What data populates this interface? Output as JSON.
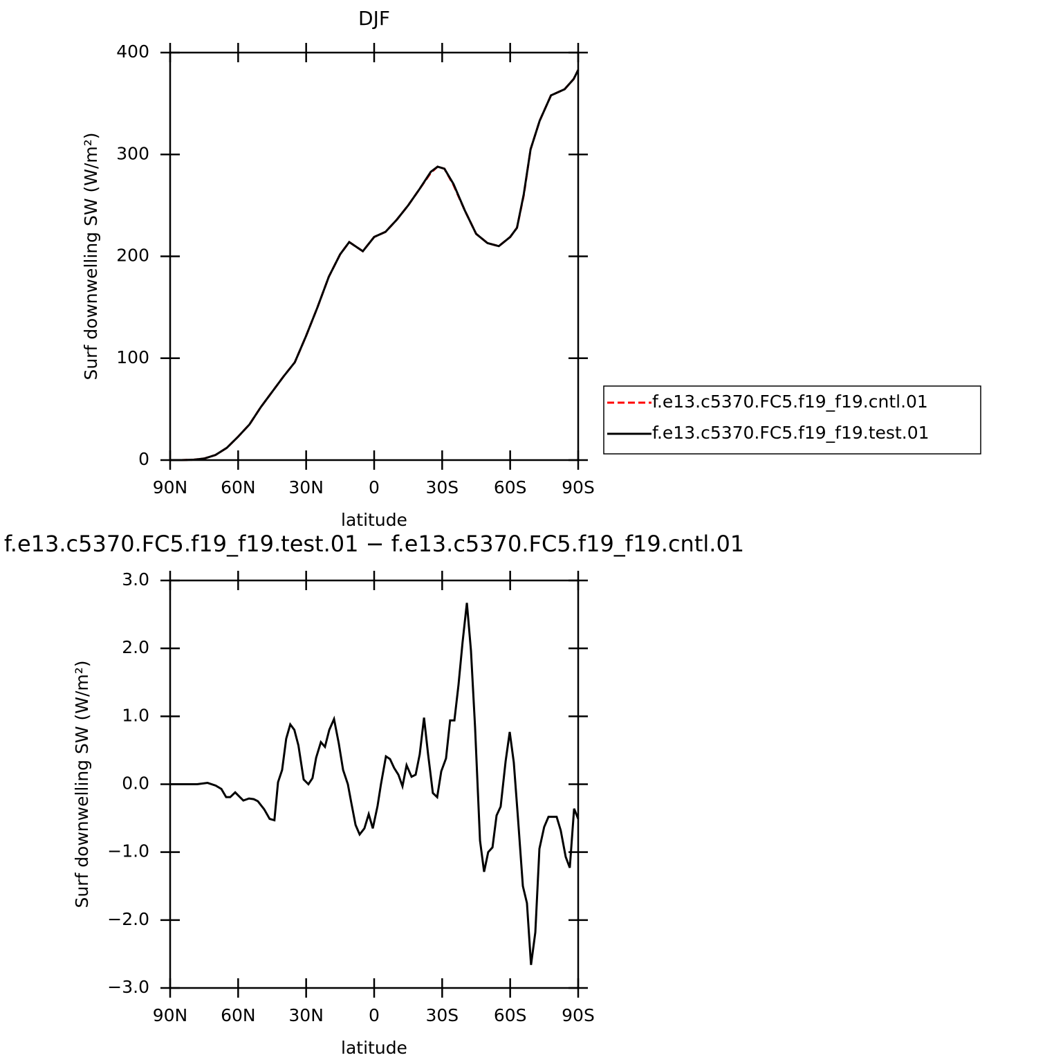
{
  "chart_data": [
    {
      "type": "line",
      "title": "DJF",
      "xlabel": "latitude",
      "ylabel": "Surf downwelling SW (W/m²)",
      "xlim": [
        90,
        -90
      ],
      "xticks": [
        {
          "value": 90,
          "label": "90N"
        },
        {
          "value": 60,
          "label": "60N"
        },
        {
          "value": 30,
          "label": "30N"
        },
        0,
        {
          "value": -30,
          "label": "30S"
        },
        {
          "value": -60,
          "label": "60S"
        },
        {
          "value": -90,
          "label": "90S"
        }
      ],
      "ylim": [
        0,
        400
      ],
      "yticks": [
        0,
        100,
        200,
        300,
        400
      ],
      "legend": "right",
      "x": [
        90,
        85,
        80,
        75,
        70,
        65,
        60,
        55,
        50,
        45,
        40,
        35,
        30,
        25,
        20,
        15,
        11,
        5,
        0,
        -5,
        -10,
        -15,
        -20,
        -25,
        -28,
        -31,
        -35,
        -40,
        -45,
        -50,
        -55,
        -60,
        -63,
        -66,
        -69,
        -73,
        -78,
        -84,
        -88,
        -90
      ],
      "series": [
        {
          "name": "f.e13.c5370.FC5.f19_f19.cntl.01",
          "color": "#ff0000",
          "linestyle": "dashed",
          "values": [
            0,
            0,
            0.3,
            1.5,
            5,
            12,
            23,
            35,
            52,
            67,
            82,
            96,
            122,
            150,
            180,
            202,
            214,
            205,
            219,
            224,
            236,
            250,
            266,
            282,
            288,
            286,
            270,
            245,
            222,
            213,
            210,
            219,
            228,
            260,
            305,
            333,
            358,
            364,
            374,
            383
          ]
        },
        {
          "name": "f.e13.c5370.FC5.f19_f19.test.01",
          "color": "#000000",
          "linestyle": "solid",
          "values": [
            0,
            0,
            0.3,
            1.5,
            5,
            12,
            23,
            35,
            52,
            67,
            82,
            96,
            122,
            150,
            180,
            202,
            214,
            205,
            219,
            224,
            236,
            250,
            266,
            283,
            288,
            286,
            271,
            245,
            222,
            213,
            210,
            219,
            228,
            261,
            305,
            333,
            358,
            364,
            374,
            383
          ]
        }
      ]
    },
    {
      "type": "line",
      "title": "f.e13.c5370.FC5.f19_f19.test.01 − f.e13.c5370.FC5.f19_f19.cntl.01",
      "xlabel": "latitude",
      "ylabel": "Surf downwelling SW (W/m²)",
      "xlim": [
        90,
        -90
      ],
      "xticks": [
        {
          "value": 90,
          "label": "90N"
        },
        {
          "value": 60,
          "label": "60N"
        },
        {
          "value": 30,
          "label": "30N"
        },
        0,
        {
          "value": -30,
          "label": "30S"
        },
        {
          "value": -60,
          "label": "60S"
        },
        {
          "value": -90,
          "label": "90S"
        }
      ],
      "ylim": [
        -3,
        3
      ],
      "yticks": [
        {
          "value": -3,
          "label": "−3.0"
        },
        {
          "value": -2,
          "label": "−2.0"
        },
        {
          "value": -1,
          "label": "−1.0"
        },
        {
          "value": 0,
          "label": "0.0"
        },
        {
          "value": 1,
          "label": "1.0"
        },
        {
          "value": 2,
          "label": "2.0"
        },
        {
          "value": 3,
          "label": "3.0"
        }
      ],
      "color": "#000000",
      "x": [
        90,
        78.1,
        73.5,
        69.9,
        67.4,
        65.3,
        63.5,
        61.3,
        59.2,
        57.7,
        55.2,
        53.1,
        51.3,
        48.5,
        46.1,
        44,
        42.4,
        40.6,
        38.8,
        37,
        35.2,
        33.4,
        31.1,
        29,
        27.2,
        25.6,
        23.5,
        21.7,
        19.8,
        17.7,
        15.6,
        13.7,
        11.6,
        10.1,
        8.2,
        6.4,
        4.3,
        2.4,
        0.6,
        -1.5,
        -3,
        -5.2,
        -7,
        -8.8,
        -10.7,
        -12.5,
        -14.3,
        -16.5,
        -18.3,
        -20.1,
        -22,
        -23.8,
        -25.9,
        -27.8,
        -29.6,
        -31.7,
        -33.5,
        -35.4,
        -37.2,
        -39,
        -40.9,
        -42.7,
        -44.5,
        -46.7,
        -48.5,
        -50.3,
        -52.2,
        -54,
        -55.8,
        -58,
        -59.8,
        -61.6,
        -63.4,
        -65.6,
        -67.4,
        -69.2,
        -71.1,
        -72.9,
        -75,
        -76.9,
        -78.7,
        -80.5,
        -82.3,
        -84.5,
        -86.3,
        -88.2,
        -90
      ],
      "values": [
        0,
        0,
        0.02,
        -0.02,
        -0.07,
        -0.19,
        -0.19,
        -0.12,
        -0.19,
        -0.24,
        -0.21,
        -0.22,
        -0.25,
        -0.37,
        -0.51,
        -0.53,
        0.03,
        0.21,
        0.67,
        0.88,
        0.8,
        0.57,
        0.07,
        0,
        0.09,
        0.39,
        0.62,
        0.55,
        0.8,
        0.96,
        0.6,
        0.21,
        0,
        -0.27,
        -0.6,
        -0.74,
        -0.65,
        -0.44,
        -0.65,
        -0.32,
        0,
        0.41,
        0.37,
        0.24,
        0.14,
        -0.03,
        0.28,
        0.11,
        0.14,
        0.44,
        0.98,
        0.44,
        -0.13,
        -0.19,
        0.19,
        0.38,
        0.94,
        0.94,
        1.46,
        2.09,
        2.67,
        1.97,
        0.85,
        -0.83,
        -1.29,
        -1,
        -0.93,
        -0.46,
        -0.33,
        0.34,
        0.77,
        0.32,
        -0.48,
        -1.5,
        -1.75,
        -2.66,
        -2.18,
        -0.95,
        -0.63,
        -0.48,
        -0.48,
        -0.48,
        -0.68,
        -1.07,
        -1.23,
        -0.36,
        -0.51
      ]
    }
  ]
}
